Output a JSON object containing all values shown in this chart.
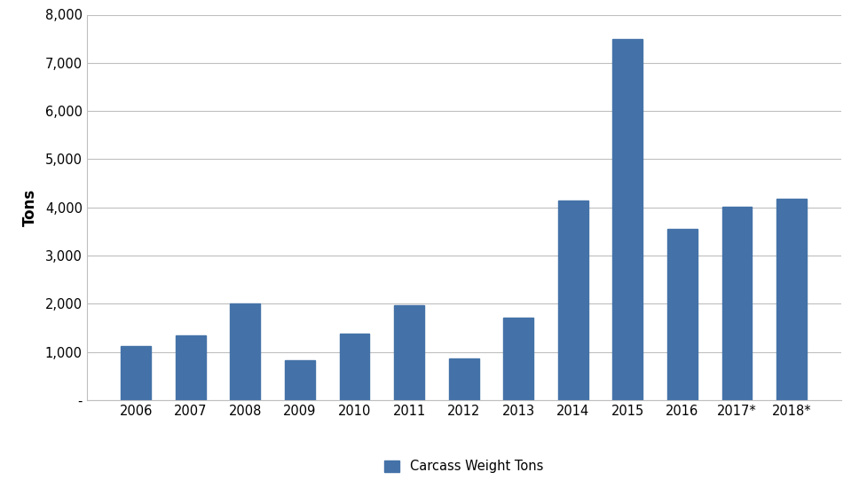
{
  "categories": [
    "2006",
    "2007",
    "2008",
    "2009",
    "2010",
    "2011",
    "2012",
    "2013",
    "2014",
    "2015",
    "2016",
    "2017*",
    "2018*"
  ],
  "values": [
    1120,
    1350,
    2000,
    820,
    1380,
    1970,
    860,
    1720,
    4150,
    7500,
    3560,
    4020,
    4180
  ],
  "bar_color": "#4472a8",
  "ylabel": "Tons",
  "ylim": [
    0,
    8000
  ],
  "yticks": [
    0,
    1000,
    2000,
    3000,
    4000,
    5000,
    6000,
    7000,
    8000
  ],
  "ytick_labels": [
    "-",
    "1,000",
    "2,000",
    "3,000",
    "4,000",
    "5,000",
    "6,000",
    "7,000",
    "8,000"
  ],
  "legend_label": "Carcass Weight Tons",
  "background_color": "#ffffff",
  "grid_color": "#bfbfbf",
  "bar_width": 0.55
}
